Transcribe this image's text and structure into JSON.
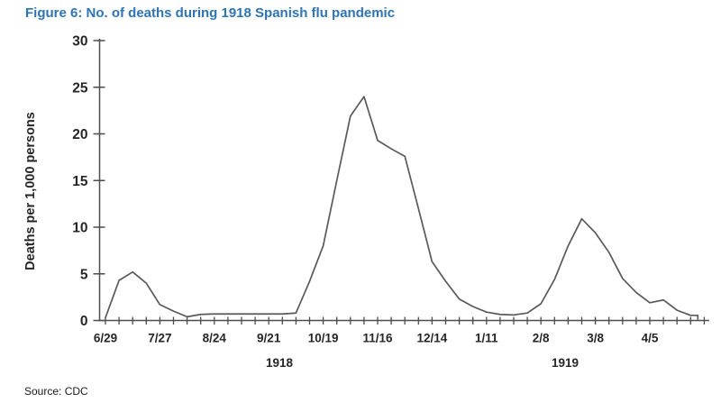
{
  "figure": {
    "title": "Figure 6: No. of deaths during 1918 Spanish flu pandemic",
    "source": "Source: CDC"
  },
  "colors": {
    "title_blue": "#2E74B5",
    "axis": "#4d4d4d",
    "line": "#595959",
    "label_text": "#262626"
  },
  "chart_data": {
    "type": "line",
    "title": "Figure 6: No. of deaths during 1918 Spanish flu pandemic",
    "xlabel": "",
    "ylabel": "Deaths per 1,000 persons",
    "ylim": [
      0,
      30
    ],
    "y_ticks": [
      0,
      5,
      10,
      15,
      20,
      25,
      30
    ],
    "grid": false,
    "legend": null,
    "x": [
      "6/29",
      "7/6",
      "7/13",
      "7/20",
      "7/27",
      "8/3",
      "8/10",
      "8/17",
      "8/24",
      "8/31",
      "9/7",
      "9/14",
      "9/21",
      "9/28",
      "10/5",
      "10/12",
      "10/19",
      "10/26",
      "11/2",
      "11/9",
      "11/16",
      "11/23",
      "11/30",
      "12/7",
      "12/14",
      "12/21",
      "12/28",
      "1/4",
      "1/11",
      "1/18",
      "1/25",
      "2/1",
      "2/8",
      "2/15",
      "2/22",
      "3/1",
      "3/8",
      "3/15",
      "3/22",
      "3/29",
      "4/5",
      "4/12",
      "4/19",
      "4/26"
    ],
    "values": [
      0.3,
      4.3,
      5.2,
      4.0,
      1.7,
      1.0,
      0.4,
      0.65,
      0.7,
      0.7,
      0.7,
      0.7,
      0.7,
      0.7,
      0.8,
      4.2,
      8.0,
      15.0,
      21.9,
      24.0,
      19.3,
      18.4,
      17.6,
      12.0,
      6.3,
      4.2,
      2.3,
      1.5,
      0.9,
      0.65,
      0.6,
      0.8,
      1.8,
      4.4,
      8.0,
      10.9,
      9.4,
      7.3,
      4.5,
      3.0,
      1.9,
      2.2,
      1.1,
      0.55
    ],
    "x_labeled_ticks": [
      "6/29",
      "7/27",
      "8/24",
      "9/21",
      "10/19",
      "11/16",
      "12/14",
      "1/11",
      "2/8",
      "3/8",
      "4/5"
    ],
    "label_every_n_ticks": 4,
    "year_labels": [
      "1918",
      "1919"
    ],
    "series_name": "Deaths per 1,000 persons",
    "ends_with_vertical_drop": true,
    "source": "CDC"
  }
}
